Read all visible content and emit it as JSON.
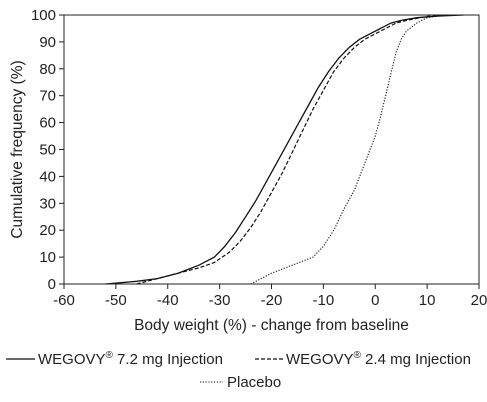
{
  "chart_data": {
    "type": "line",
    "xlabel": "Body weight (%) - change from baseline",
    "ylabel": "Cumulative frequency (%)",
    "xlim": [
      -60,
      20
    ],
    "ylim": [
      0,
      100
    ],
    "xticks": [
      "-60",
      "-50",
      "-40",
      "-30",
      "-20",
      "-10",
      "0",
      "10",
      "20"
    ],
    "yticks": [
      "0",
      "10",
      "20",
      "30",
      "40",
      "50",
      "60",
      "70",
      "80",
      "90",
      "100"
    ],
    "grid": false,
    "legend_position": "bottom",
    "series": [
      {
        "name": "WEGOVY 7.2 mg Injection",
        "name_main": "WEGOVY",
        "name_suffix": " 7.2 mg Injection",
        "name_mark": "®",
        "line_style": "solid",
        "x": [
          -52,
          -46,
          -42,
          -38,
          -34,
          -31,
          -29,
          -27,
          -25,
          -23,
          -21,
          -19,
          -17,
          -15,
          -13,
          -11,
          -9,
          -7,
          -5,
          -3,
          -1,
          1,
          3,
          5,
          8,
          12,
          17
        ],
        "y": [
          0,
          1,
          2,
          4,
          7,
          10,
          14,
          19,
          25,
          31,
          38,
          45,
          52,
          59,
          66,
          73,
          79,
          84,
          88,
          91,
          93,
          95,
          97,
          98,
          99,
          99.6,
          100
        ]
      },
      {
        "name": "WEGOVY 2.4 mg Injection",
        "name_main": "WEGOVY",
        "name_suffix": " 2.4 mg Injection",
        "name_mark": "®",
        "line_style": "dashed",
        "x": [
          -46,
          -42,
          -38,
          -34,
          -31,
          -28,
          -26,
          -24,
          -22,
          -20,
          -18,
          -16,
          -14,
          -12,
          -10,
          -8,
          -6,
          -4,
          -2,
          0,
          2,
          4,
          6,
          10,
          14
        ],
        "y": [
          0,
          2,
          4,
          6,
          8,
          12,
          16,
          21,
          27,
          34,
          41,
          49,
          57,
          65,
          72,
          79,
          84,
          88,
          91,
          93,
          95,
          97,
          98,
          99.5,
          100
        ]
      },
      {
        "name": "Placebo",
        "line_style": "dotted",
        "x": [
          -24,
          -20,
          -16,
          -12,
          -10,
          -8,
          -6,
          -4,
          -2,
          0,
          1,
          2,
          3,
          4,
          5,
          6,
          8,
          10,
          12,
          14
        ],
        "y": [
          0,
          4,
          7,
          10,
          14,
          20,
          28,
          35,
          45,
          55,
          62,
          70,
          78,
          86,
          91,
          94,
          97,
          99,
          99.6,
          100
        ]
      }
    ]
  }
}
